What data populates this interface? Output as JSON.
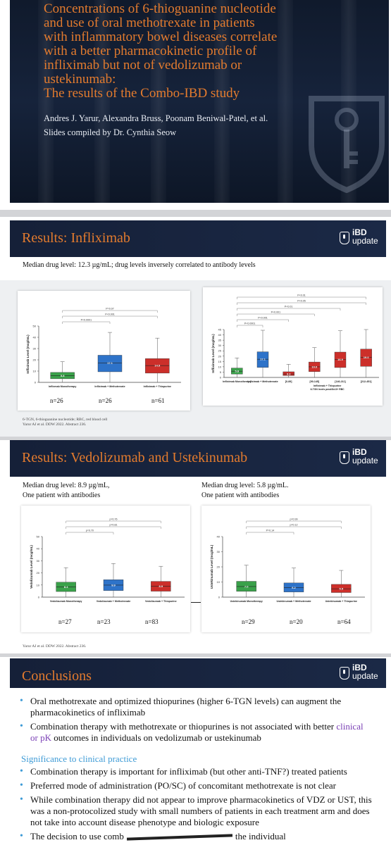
{
  "title_slide": {
    "title_lines": [
      "Concentrations of 6-thioguanine nucleotide",
      "and use of oral methotrexate in patients",
      "with inflammatory bowel diseases correlate",
      "with a better pharmacokinetic profile of",
      "infliximab but not of vedolizumab or",
      "ustekinumab:",
      "The results of the Combo-IBD study"
    ],
    "authors": "Andres J. Yarur, Alexandra Bruss, Poonam Beniwal-Patel, et al.",
    "compiled": "Slides compiled by Dr. Cynthia Seow"
  },
  "logo": {
    "line1": "iBD",
    "line2": "update"
  },
  "infliximab": {
    "title": "Results: Infliximab",
    "caption": "Median drug level: 12.3 µg/mL; drug levels inversely correlated to antibody levels",
    "footnote1": "6-TGN, 6-thioguanine nucleotide; RBC, red blood cell",
    "footnote2": "Yarur AJ et al. DDW 2022. Abstract 236.",
    "n_labels": [
      "n=26",
      "n=26",
      "n=61"
    ]
  },
  "vedo": {
    "title": "Results: Vedolizumab and Ustekinumab",
    "cap_left_1": "Median drug level: 8.9 µg/mL,",
    "cap_left_2": "One patient with antibodies",
    "cap_right_1": "Median drug level: 5.8 µg/mL.",
    "cap_right_2": "One patient with antibodies",
    "n_left": [
      "n=27",
      "n=23",
      "n=83"
    ],
    "n_right": [
      "n=29",
      "n=20",
      "n=64"
    ],
    "footnote": "Yarur AJ et al. DDW 2022. Abstract 236."
  },
  "conclusions": {
    "title": "Conclusions",
    "b1": "Oral methotrexate and optimized thiopurines (higher 6-TGN levels) can augment the pharmacokinetics of infliximab",
    "b2_a": "Combination therapy with methotrexate or thiopurines is not associated with better",
    "b2_purple": "clinical or pK",
    "b2_b": "outcomes in individuals on vedolizumab or ustekinumab",
    "sig_title": "Significance to clinical practice",
    "s1": "Combination therapy is important for infliximab (but other anti-TNF?) treated patients",
    "s2": "Preferred mode of administration (PO/SC) of concomitant methotrexate is not clear",
    "s3": "While combination therapy did not appear to improve pharmacokinetics of VDZ or UST, this was a non-protocolized study with small numbers of patients in each treatment arm and does not take into account disease phenotype and biologic exposure",
    "s4_a": "The decision to use comb",
    "s4_b": "the individual"
  },
  "chart_data": [
    {
      "type": "box",
      "ylabel": "Infliximab Level (mcg/mL)",
      "ylim": [
        0,
        50
      ],
      "categories": [
        "Inflixmab Monotherapy",
        "Infliximab + Methotrexate",
        "Infliximab + Thiopurine"
      ],
      "medians": [
        5.8,
        17.1,
        14.9
      ],
      "colors": [
        "#3aa14a",
        "#2e73c9",
        "#cc2f2a"
      ],
      "pvalues": [
        "P<0.0001",
        "P<0.001",
        "P=0.07"
      ]
    },
    {
      "type": "box",
      "ylabel": "Infliximab Level (mcg/mL)",
      "ylim": [
        0,
        45
      ],
      "categories": [
        "Infliximab Monotherapy",
        "Infliximab + Methotrexate",
        "[0-89]",
        "[90-145]",
        "[146-211]",
        "[212-451]"
      ],
      "group_label": "Infliximab + Thiopurine",
      "group_sublabel": "6-TGN levels pmol/8x10⁸ RBC",
      "medians": [
        5.8,
        17.1,
        3.2,
        10.0,
        16.9,
        19.0
      ],
      "colors": [
        "#3aa14a",
        "#2e73c9",
        "#cc2f2a",
        "#cc2f2a",
        "#cc2f2a",
        "#cc2f2a"
      ],
      "pvalues": [
        "P<0.0001",
        "P<0.001",
        "P<0.001",
        "P<0.01",
        "P<0.05",
        "P<0.01"
      ]
    },
    {
      "type": "box",
      "ylabel": "Vedolizumab Level (mcg/mL)",
      "ylim": [
        0,
        50
      ],
      "categories": [
        "Vedolizumab Monotherapy",
        "Vedolizumab + Methotrexate",
        "Vedolizumab + Thiopurine"
      ],
      "medians": [
        8.4,
        9.9,
        8.9
      ],
      "colors": [
        "#3aa14a",
        "#2e73c9",
        "#cc2f2a"
      ],
      "pvalues": [
        "p=0.70",
        "p=0.81",
        "p=0.76"
      ]
    },
    {
      "type": "box",
      "ylabel": "Ustekinumab Level (mcg/mL)",
      "ylim": [
        0,
        40
      ],
      "categories": [
        "Ustekinumab Monotherapy",
        "Ustekinumab + Methotrexate",
        "Ustekinumab + Thiopurine"
      ],
      "medians": [
        7.0,
        6.2,
        5.5
      ],
      "colors": [
        "#3aa14a",
        "#2e73c9",
        "#cc2f2a"
      ],
      "pvalues": [
        "P=0.14",
        "p=0.12",
        "p=0.99"
      ]
    }
  ]
}
